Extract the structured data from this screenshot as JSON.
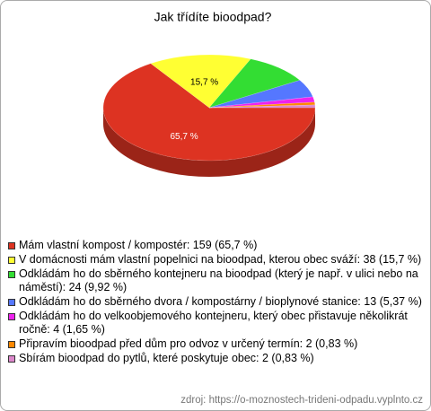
{
  "chart_data": {
    "type": "pie",
    "title": "Jak třídíte bioodpad?",
    "categories": [
      "Mám vlastní kompost / kompostér: 159 (65,7 %)",
      "V domácnosti mám vlastní popelnici na bioodpad, kterou obec sváží: 38 (15,7 %)",
      "Odkládám ho do sběrného kontejneru na bioodpad (který je např. v ulici nebo na náměstí): 24 (9,92 %)",
      "Odkládám ho do sběrného dvora / kompostárny / bioplynové stanice: 13 (5,37 %)",
      "Odkládám ho do velkoobjemového kontejneru, který obec přistavuje několikrát ročně: 4 (1,65 %)",
      "Připravím bioodpad před dům pro odvoz v určený termín: 2 (0,83 %)",
      "Sbírám bioodpad do pytlů, které poskytuje obec: 2 (0,83 %)"
    ],
    "values": [
      65.7,
      15.7,
      9.92,
      5.37,
      1.65,
      0.83,
      0.83
    ],
    "value_labels": [
      "65,7 %",
      "15,7 %",
      null,
      null,
      null,
      null,
      null
    ],
    "colors": [
      "#dd3322",
      "#ffff33",
      "#33dd33",
      "#5577ff",
      "#ee22ee",
      "#ff8800",
      "#dd88cc"
    ],
    "source": "zdroj: https://o-moznostech-trideni-odpadu.vyplnto.cz"
  }
}
